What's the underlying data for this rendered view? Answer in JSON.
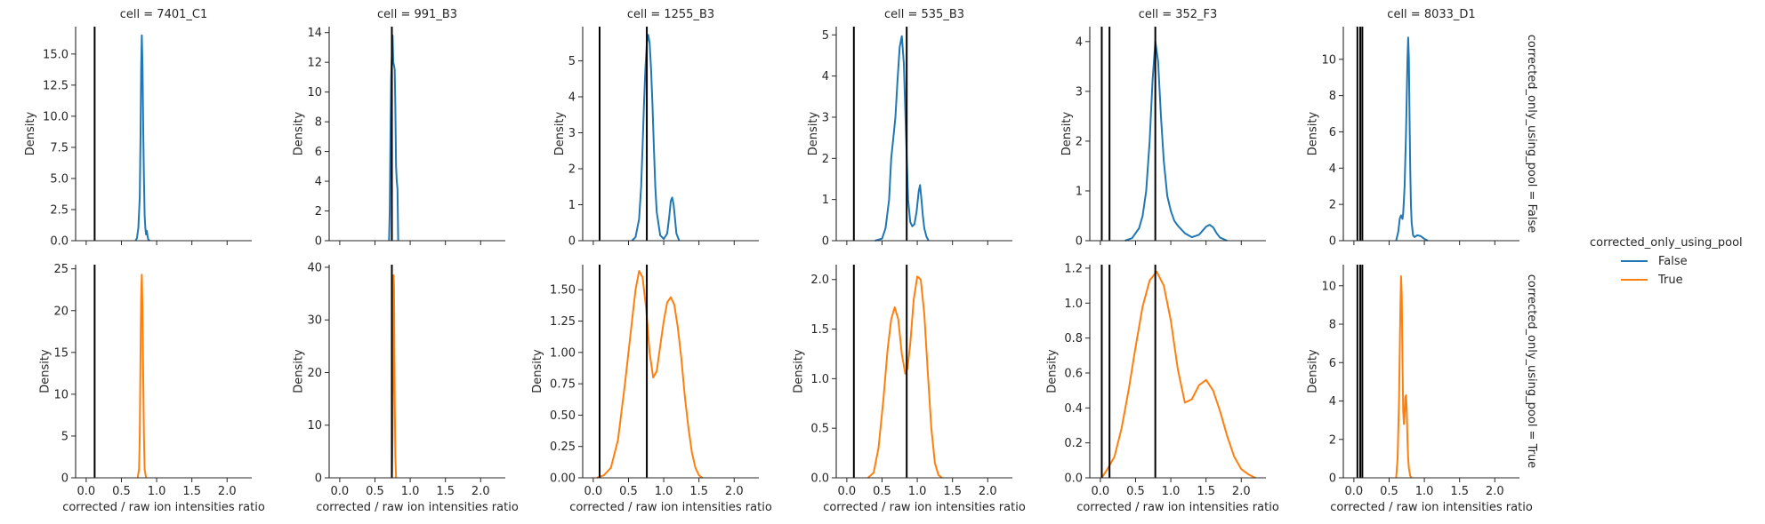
{
  "chart_data": {
    "type": "kde-facet-grid",
    "xlabel": "corrected / raw ion intensities ratio",
    "ylabel": "Density",
    "xlim": [
      -0.15,
      2.35
    ],
    "xticks": [
      "0.0",
      "0.5",
      "1.0",
      "1.5",
      "2.0"
    ],
    "xtick_values": [
      0,
      0.5,
      1,
      1.5,
      2
    ],
    "legend": {
      "title": "corrected_only_using_pool",
      "placement": "right",
      "entries": [
        {
          "label": "False",
          "color": "#1f77b4"
        },
        {
          "label": "True",
          "color": "#ff7f0e"
        }
      ]
    },
    "rows": [
      {
        "label": "corrected_only_using_pool = False",
        "color": "#1f77b4"
      },
      {
        "label": "corrected_only_using_pool = True",
        "color": "#ff7f0e"
      }
    ],
    "columns": [
      {
        "title": "cell = 7401_C1",
        "vlines": [
          0.12
        ],
        "panels": [
          {
            "ylim": [
              0,
              17.2
            ],
            "yticks": [
              0,
              2.5,
              5,
              7.5,
              10,
              12.5,
              15
            ],
            "ytick_labels": [
              "0.0",
              "2.5",
              "5.0",
              "7.5",
              "10.0",
              "12.5",
              "15.0"
            ],
            "x": [
              0.7,
              0.72,
              0.74,
              0.76,
              0.77,
              0.78,
              0.79,
              0.8,
              0.81,
              0.82,
              0.83,
              0.84,
              0.85,
              0.86,
              0.87,
              0.88,
              0.9
            ],
            "y": [
              0,
              0.2,
              1.0,
              3.5,
              8.0,
              14.0,
              16.5,
              14.0,
              9.0,
              5.0,
              2.0,
              1.0,
              0.5,
              0.8,
              0.4,
              0.1,
              0
            ]
          },
          {
            "ylim": [
              0,
              25.5
            ],
            "yticks": [
              0,
              5,
              10,
              15,
              20,
              25
            ],
            "ytick_labels": [
              "0",
              "5",
              "10",
              "15",
              "20",
              "25"
            ],
            "x": [
              0.73,
              0.75,
              0.76,
              0.77,
              0.78,
              0.79,
              0.8,
              0.81,
              0.82,
              0.83,
              0.85
            ],
            "y": [
              0,
              1.0,
              5.0,
              14.0,
              22.0,
              24.3,
              20.0,
              12.0,
              5.0,
              1.0,
              0
            ]
          }
        ]
      },
      {
        "title": "cell = 991_B3",
        "vlines": [
          0.74
        ],
        "panels": [
          {
            "ylim": [
              0,
              14.4
            ],
            "yticks": [
              0,
              2,
              4,
              6,
              8,
              10,
              12,
              14
            ],
            "ytick_labels": [
              "0",
              "2",
              "4",
              "6",
              "8",
              "10",
              "12",
              "14"
            ],
            "x": [
              0.7,
              0.71,
              0.72,
              0.73,
              0.74,
              0.75,
              0.76,
              0.77,
              0.78,
              0.79,
              0.8,
              0.81,
              0.82,
              0.83
            ],
            "y": [
              0,
              2.0,
              7.0,
              11.0,
              12.5,
              13.8,
              12.0,
              11.8,
              11.5,
              9.0,
              5.0,
              4.0,
              3.5,
              0
            ]
          },
          {
            "ylim": [
              0,
              40.5
            ],
            "yticks": [
              0,
              10,
              20,
              30,
              40
            ],
            "ytick_labels": [
              "0",
              "10",
              "20",
              "30",
              "40"
            ],
            "x": [
              0.74,
              0.75,
              0.76,
              0.765,
              0.77,
              0.775,
              0.78,
              0.79,
              0.8
            ],
            "y": [
              0,
              8.0,
              30.0,
              38.5,
              36.0,
              25.0,
              15.0,
              4.0,
              0
            ]
          }
        ]
      },
      {
        "title": "cell = 1255_B3",
        "vlines": [
          0.09,
          0.76
        ],
        "panels": [
          {
            "ylim": [
              0,
              5.95
            ],
            "yticks": [
              0,
              1,
              2,
              3,
              4,
              5
            ],
            "ytick_labels": [
              "0",
              "1",
              "2",
              "3",
              "4",
              "5"
            ],
            "x": [
              0.55,
              0.6,
              0.65,
              0.68,
              0.7,
              0.72,
              0.74,
              0.76,
              0.78,
              0.8,
              0.82,
              0.84,
              0.86,
              0.88,
              0.9,
              0.95,
              1.0,
              1.05,
              1.08,
              1.1,
              1.12,
              1.14,
              1.16,
              1.18,
              1.22
            ],
            "y": [
              0,
              0.1,
              0.6,
              1.5,
              2.6,
              3.8,
              4.8,
              5.5,
              5.72,
              5.5,
              4.8,
              3.8,
              2.6,
              1.5,
              0.8,
              0.15,
              0.05,
              0.2,
              0.7,
              1.1,
              1.2,
              1.0,
              0.6,
              0.2,
              0
            ]
          },
          {
            "ylim": [
              0,
              1.7
            ],
            "yticks": [
              0,
              0.25,
              0.5,
              0.75,
              1,
              1.25,
              1.5
            ],
            "ytick_labels": [
              "0.00",
              "0.25",
              "0.50",
              "0.75",
              "1.00",
              "1.25",
              "1.50"
            ],
            "x": [
              0.05,
              0.15,
              0.25,
              0.35,
              0.45,
              0.55,
              0.6,
              0.65,
              0.7,
              0.75,
              0.8,
              0.85,
              0.9,
              0.95,
              1.0,
              1.05,
              1.1,
              1.15,
              1.2,
              1.25,
              1.3,
              1.35,
              1.4,
              1.45,
              1.5,
              1.55
            ],
            "y": [
              0,
              0.02,
              0.08,
              0.3,
              0.75,
              1.25,
              1.5,
              1.65,
              1.6,
              1.35,
              1.0,
              0.8,
              0.85,
              1.05,
              1.25,
              1.4,
              1.44,
              1.38,
              1.2,
              0.95,
              0.65,
              0.4,
              0.2,
              0.08,
              0.02,
              0
            ]
          }
        ]
      },
      {
        "title": "cell = 535_B3",
        "vlines": [
          0.1,
          0.85
        ],
        "panels": [
          {
            "ylim": [
              0,
              5.2
            ],
            "yticks": [
              0,
              1,
              2,
              3,
              4,
              5
            ],
            "ytick_labels": [
              "0",
              "1",
              "2",
              "3",
              "4",
              "5"
            ],
            "x": [
              0.4,
              0.5,
              0.55,
              0.6,
              0.63,
              0.66,
              0.69,
              0.72,
              0.75,
              0.78,
              0.81,
              0.84,
              0.87,
              0.9,
              0.93,
              0.96,
              0.99,
              1.02,
              1.04,
              1.06,
              1.08,
              1.1,
              1.13,
              1.16
            ],
            "y": [
              0,
              0.05,
              0.3,
              1.0,
              2.0,
              2.5,
              3.0,
              3.9,
              4.7,
              4.97,
              4.3,
              2.6,
              1.0,
              0.45,
              0.35,
              0.4,
              0.7,
              1.2,
              1.35,
              1.0,
              0.6,
              0.3,
              0.1,
              0
            ]
          },
          {
            "ylim": [
              0,
              2.15
            ],
            "yticks": [
              0,
              0.5,
              1,
              1.5,
              2
            ],
            "ytick_labels": [
              "0.0",
              "0.5",
              "1.0",
              "1.5",
              "2.0"
            ],
            "x": [
              0.3,
              0.38,
              0.45,
              0.52,
              0.58,
              0.63,
              0.68,
              0.73,
              0.78,
              0.83,
              0.86,
              0.9,
              0.95,
              1.0,
              1.05,
              1.1,
              1.15,
              1.2,
              1.25,
              1.3,
              1.35
            ],
            "y": [
              0,
              0.05,
              0.3,
              0.8,
              1.3,
              1.6,
              1.72,
              1.6,
              1.25,
              1.05,
              1.1,
              1.35,
              1.8,
              2.03,
              2.0,
              1.65,
              1.05,
              0.5,
              0.15,
              0.03,
              0
            ]
          }
        ]
      },
      {
        "title": "cell = 352_F3",
        "vlines": [
          0.02,
          0.13,
          0.78
        ],
        "panels": [
          {
            "ylim": [
              0,
              4.3
            ],
            "yticks": [
              0,
              1,
              2,
              3,
              4
            ],
            "ytick_labels": [
              "0",
              "1",
              "2",
              "3",
              "4"
            ],
            "x": [
              0.35,
              0.45,
              0.55,
              0.6,
              0.65,
              0.7,
              0.74,
              0.78,
              0.82,
              0.86,
              0.9,
              0.95,
              1.0,
              1.05,
              1.1,
              1.2,
              1.3,
              1.4,
              1.5,
              1.55,
              1.6,
              1.65,
              1.7,
              1.8
            ],
            "y": [
              0,
              0.05,
              0.25,
              0.5,
              1.0,
              2.0,
              3.2,
              4.0,
              3.6,
              2.5,
              1.6,
              0.9,
              0.6,
              0.4,
              0.3,
              0.15,
              0.07,
              0.12,
              0.28,
              0.32,
              0.27,
              0.15,
              0.06,
              0
            ]
          },
          {
            "ylim": [
              0,
              1.22
            ],
            "yticks": [
              0,
              0.2,
              0.4,
              0.6,
              0.8,
              1,
              1.2
            ],
            "ytick_labels": [
              "0.0",
              "0.2",
              "0.4",
              "0.6",
              "0.8",
              "1.0",
              "1.2"
            ],
            "x": [
              0.02,
              0.1,
              0.2,
              0.3,
              0.4,
              0.5,
              0.6,
              0.7,
              0.8,
              0.9,
              1.0,
              1.1,
              1.2,
              1.3,
              1.4,
              1.5,
              1.6,
              1.7,
              1.8,
              1.9,
              2.0,
              2.1,
              2.2
            ],
            "y": [
              0,
              0.05,
              0.12,
              0.28,
              0.5,
              0.75,
              0.98,
              1.13,
              1.18,
              1.1,
              0.9,
              0.62,
              0.43,
              0.45,
              0.53,
              0.56,
              0.5,
              0.38,
              0.24,
              0.12,
              0.05,
              0.02,
              0
            ]
          }
        ]
      },
      {
        "title": "cell = 8033_D1",
        "vlines": [
          0.05,
          0.09,
          0.12
        ],
        "panels": [
          {
            "ylim": [
              0,
              11.8
            ],
            "yticks": [
              0,
              2,
              4,
              6,
              8,
              10
            ],
            "ytick_labels": [
              "0",
              "2",
              "4",
              "6",
              "8",
              "10"
            ],
            "x": [
              0.6,
              0.63,
              0.65,
              0.67,
              0.69,
              0.7,
              0.72,
              0.74,
              0.76,
              0.77,
              0.78,
              0.79,
              0.8,
              0.81,
              0.82,
              0.84,
              0.86,
              0.9,
              0.95,
              1.0,
              1.05
            ],
            "y": [
              0,
              0.5,
              1.2,
              1.4,
              1.2,
              1.5,
              3.0,
              6.0,
              10.0,
              11.2,
              10.0,
              7.0,
              4.0,
              2.0,
              1.0,
              0.3,
              0.2,
              0.3,
              0.25,
              0.1,
              0
            ]
          },
          {
            "ylim": [
              0,
              11.1
            ],
            "yticks": [
              0,
              2,
              4,
              6,
              8,
              10
            ],
            "ytick_labels": [
              "0",
              "2",
              "4",
              "6",
              "8",
              "10"
            ],
            "x": [
              0.6,
              0.62,
              0.64,
              0.66,
              0.67,
              0.68,
              0.69,
              0.7,
              0.71,
              0.72,
              0.73,
              0.74,
              0.75,
              0.76,
              0.77,
              0.78,
              0.8,
              0.82
            ],
            "y": [
              0,
              1.0,
              4.0,
              9.0,
              10.5,
              9.5,
              6.0,
              3.5,
              2.8,
              3.2,
              4.2,
              4.3,
              3.5,
              2.0,
              1.0,
              0.5,
              0.1,
              0
            ]
          }
        ]
      }
    ]
  }
}
